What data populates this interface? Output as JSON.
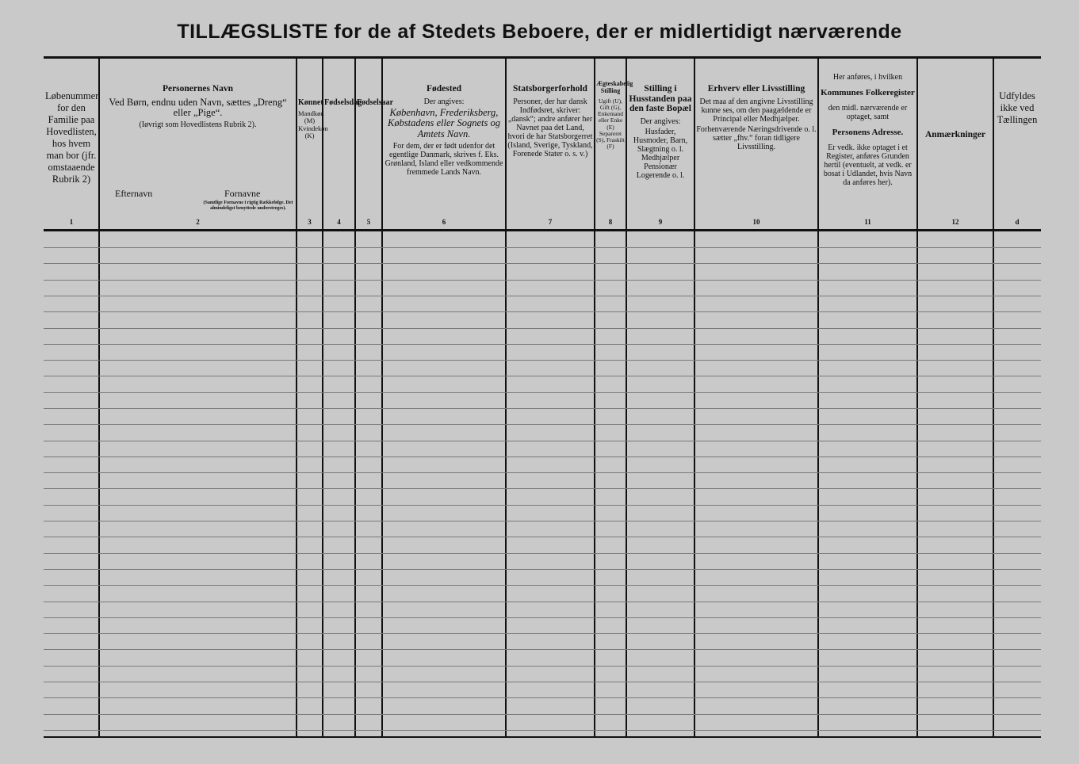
{
  "title": "TILLÆGSLISTE for de af Stedets Beboere, der er midlertidigt nærværende",
  "columns": [
    {
      "id": "lobenummer",
      "num": "1",
      "body": [
        "Løbenummer for den Familie paa Hovedlisten, hos hvem man bor (jfr. omstaaende Rubrik 2)"
      ]
    },
    {
      "id": "navn",
      "num": "2",
      "heading": "Personernes Navn",
      "body": [
        "Ved Børn, endnu uden Navn, sættes „Dreng“ eller „Pige“.",
        "(Iøvrigt som Hovedlistens Rubrik 2)."
      ],
      "sub": [
        "Efternavn",
        "Fornavne",
        "(Samtlige Fornavne i rigtig Rækkefølge. Det almindeligst benyttede understreges)."
      ]
    },
    {
      "id": "kon",
      "num": "3",
      "heading": "Kønnet",
      "body": [
        "Mandkøn (M) Kvindekøn (K)"
      ]
    },
    {
      "id": "fodselsdag",
      "num": "4",
      "heading": "Fødselsdag",
      "body": []
    },
    {
      "id": "fodselsaar",
      "num": "5",
      "heading": "Fødselsaar",
      "body": []
    },
    {
      "id": "fodested",
      "num": "6",
      "heading": "Fødested",
      "body": [
        "Der angives:",
        "København, Frederiksberg, Købstadens eller Sognets og Amtets Navn.",
        "For dem, der er født udenfor det egentlige Danmark, skrives f. Eks. Grønland, Island eller vedkommende fremmede Lands Navn."
      ]
    },
    {
      "id": "statsborger",
      "num": "7",
      "heading": "Statsborgerforhold",
      "body": [
        "Personer, der har dansk Indfødsret, skriver: „dansk“; andre anfører her Navnet paa det Land, hvori de har Statsborgerret (Island, Sverige, Tyskland, Forenede Stater o. s. v.)"
      ]
    },
    {
      "id": "aegteskab",
      "num": "8",
      "heading": "Ægteskabelig Stilling",
      "body": [
        "Ugift (U), Gift (G), Enkemand eller Enke (E) Separeret (S), Fraskilt (F)"
      ]
    },
    {
      "id": "stilling",
      "num": "9",
      "heading": "Stilling i Husstanden paa den faste Bopæl",
      "body": [
        "Der angives:",
        "Husfader, Husmoder, Barn, Slægtning o. l. Medhjælper Pensionær Logerende o. l."
      ]
    },
    {
      "id": "erhverv",
      "num": "10",
      "heading": "Erhverv eller Livsstilling",
      "body": [
        "Det maa af den angivne Livsstilling kunne ses, om den paagældende er Principal eller Medhjælper.",
        "Forhenværende Næringsdrivende o. l. sætter „fhv.“ foran tidligere Livsstilling."
      ]
    },
    {
      "id": "folkeregister",
      "num": "11",
      "heading": "",
      "body": [
        "Her anføres, i hvilken",
        "Kommunes Folkeregister",
        "den midl. nærværende er optaget, samt",
        "Personens Adresse.",
        "Er vedk. ikke optaget i et Register, anføres Grunden hertil (eventuelt, at vedk. er bosat i Udlandet, hvis Navn da anføres her)."
      ]
    },
    {
      "id": "anmaerkninger",
      "num": "12",
      "heading": "Anmærkninger",
      "body": []
    },
    {
      "id": "udfyldes",
      "num": "d",
      "body": [
        "Udfyldes ikke ved Tællingen"
      ]
    }
  ]
}
